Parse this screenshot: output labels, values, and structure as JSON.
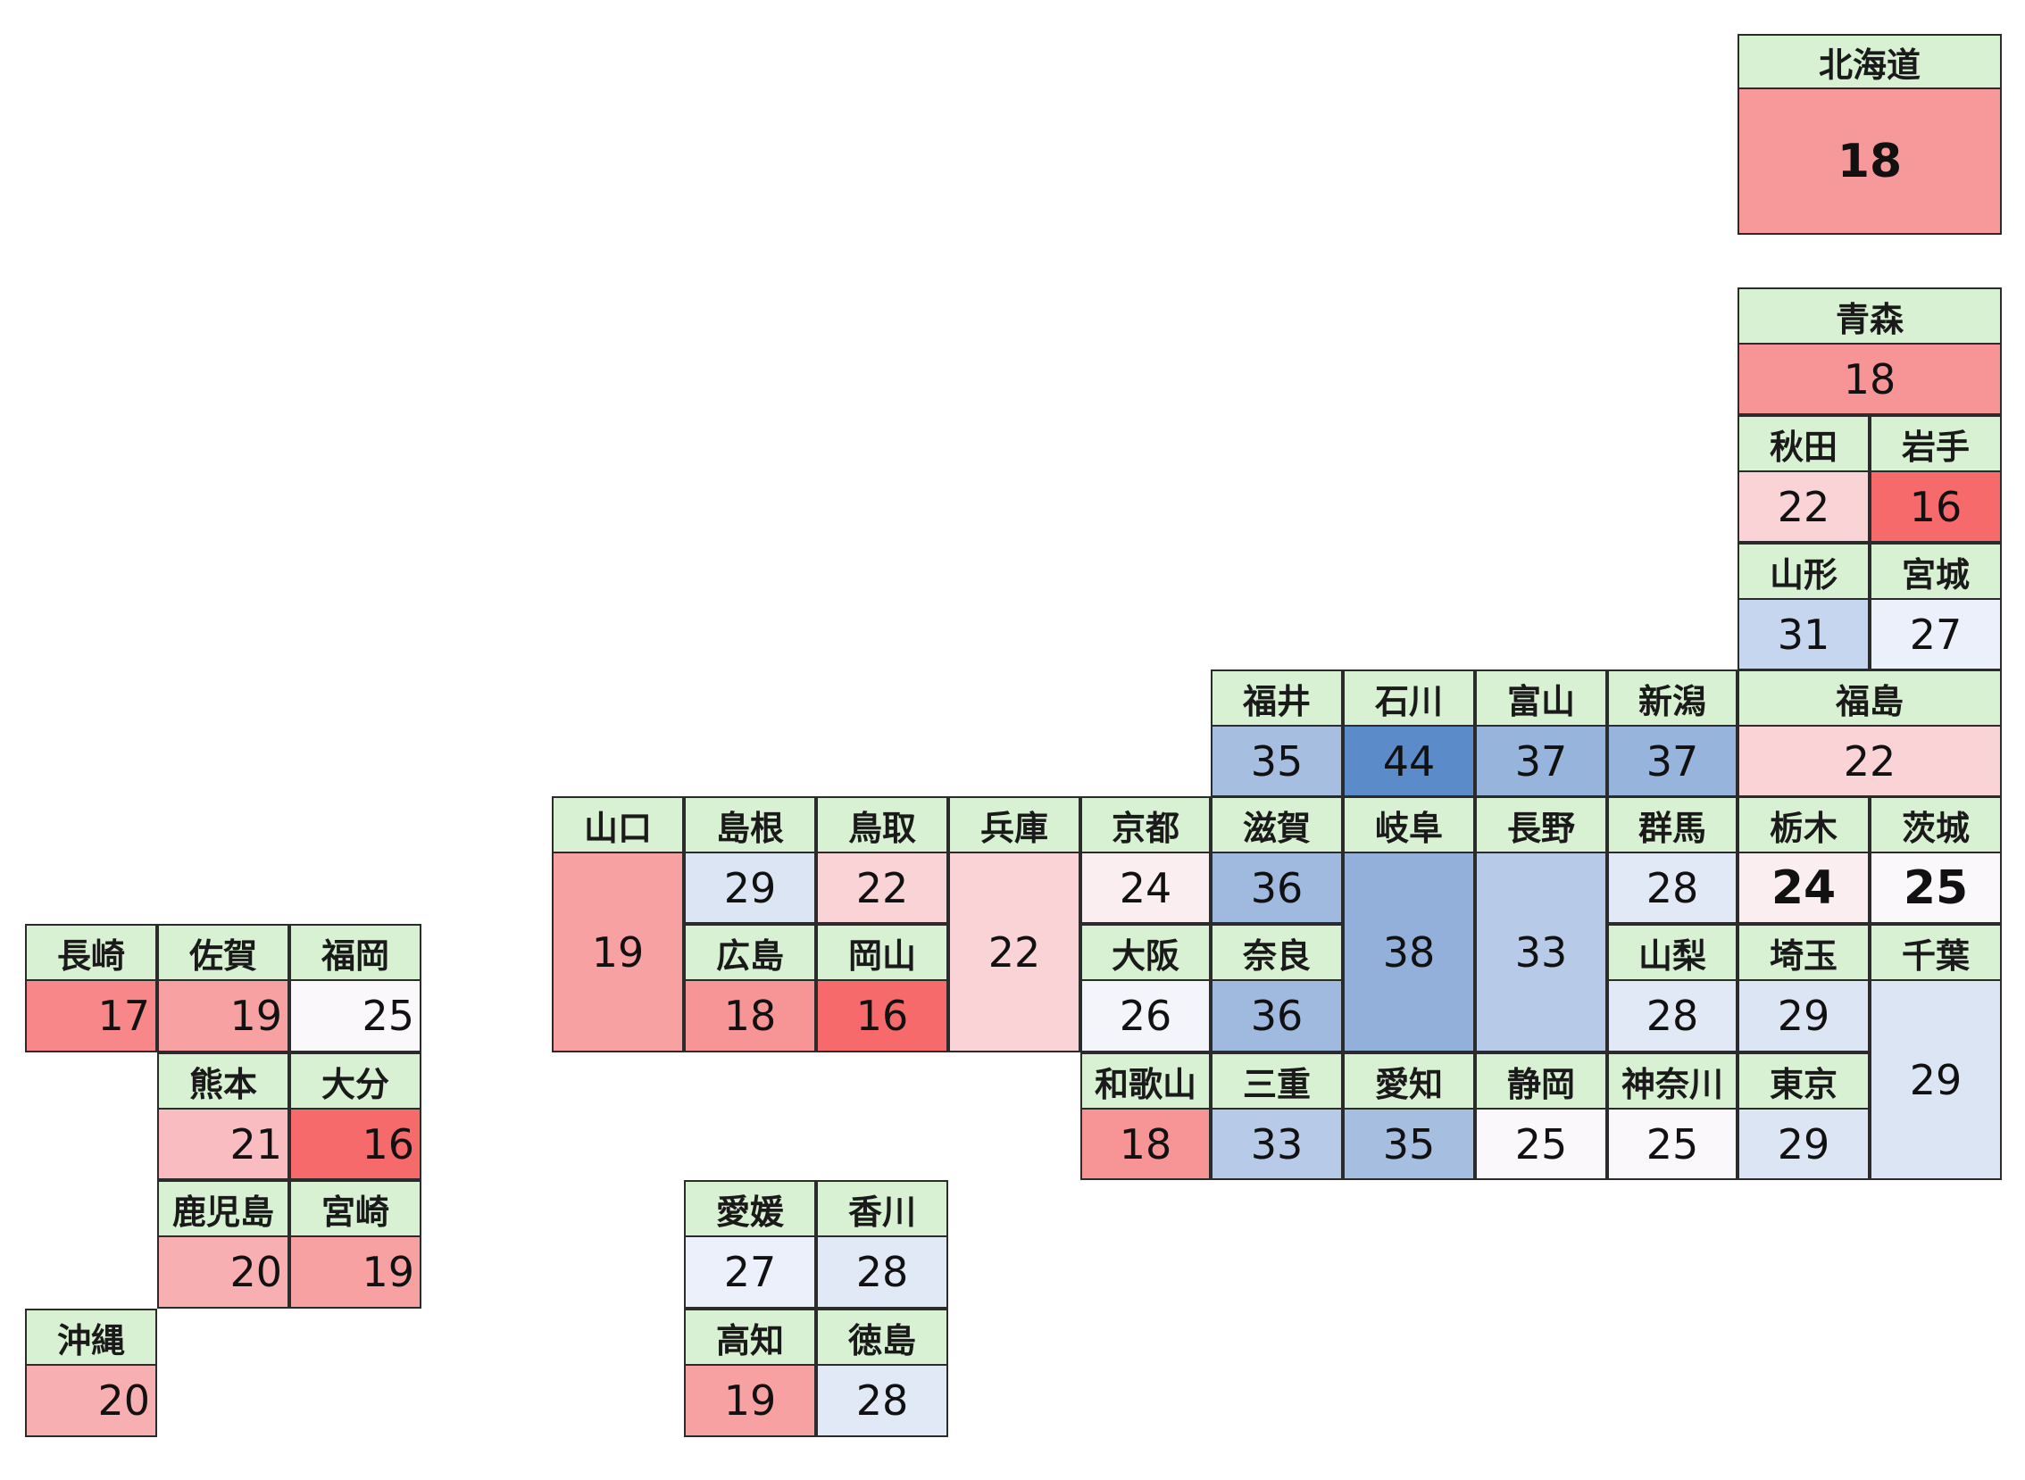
{
  "prefectures": [
    {
      "id": "hokkaido",
      "name": "北海道",
      "value": "18",
      "color": "#f7999a",
      "bold": true,
      "big": true
    },
    {
      "id": "aomori",
      "name": "青森",
      "value": "18",
      "color": "#f79596"
    },
    {
      "id": "akita",
      "name": "秋田",
      "value": "22",
      "color": "#fad3d6"
    },
    {
      "id": "iwate",
      "name": "岩手",
      "value": "16",
      "color": "#f76a6b"
    },
    {
      "id": "yamagata",
      "name": "山形",
      "value": "31",
      "color": "#c5d6ee"
    },
    {
      "id": "miyagi",
      "name": "宮城",
      "value": "27",
      "color": "#ecf0fa"
    },
    {
      "id": "fukui",
      "name": "福井",
      "value": "35",
      "color": "#a6bee0"
    },
    {
      "id": "ishikawa",
      "name": "石川",
      "value": "44",
      "color": "#5b8bc9"
    },
    {
      "id": "toyama",
      "name": "富山",
      "value": "37",
      "color": "#97b4dd"
    },
    {
      "id": "niigata",
      "name": "新潟",
      "value": "37",
      "color": "#97b4dd"
    },
    {
      "id": "fukushima",
      "name": "福島",
      "value": "22",
      "color": "#fad3d6"
    },
    {
      "id": "yamaguchi",
      "name": "山口",
      "value": "19",
      "color": "#f8a1a3"
    },
    {
      "id": "shimane",
      "name": "島根",
      "value": "29",
      "color": "#dbe5f4"
    },
    {
      "id": "tottori",
      "name": "鳥取",
      "value": "22",
      "color": "#fad3d6"
    },
    {
      "id": "hyogo",
      "name": "兵庫",
      "value": "22",
      "color": "#fad3d6"
    },
    {
      "id": "kyoto",
      "name": "京都",
      "value": "24",
      "color": "#fbeef1"
    },
    {
      "id": "shiga",
      "name": "滋賀",
      "value": "36",
      "color": "#a0badf"
    },
    {
      "id": "gifu",
      "name": "岐阜",
      "value": "38",
      "color": "#93b0da"
    },
    {
      "id": "nagano",
      "name": "長野",
      "value": "33",
      "color": "#b7cbe8"
    },
    {
      "id": "gunma",
      "name": "群馬",
      "value": "28",
      "color": "#e2e9f6"
    },
    {
      "id": "tochigi",
      "name": "栃木",
      "value": "24",
      "color": "#fbeef1",
      "bold": true,
      "big": true
    },
    {
      "id": "ibaraki",
      "name": "茨城",
      "value": "25",
      "color": "#fbf8fc",
      "bold": true,
      "big": true
    },
    {
      "id": "hiroshima",
      "name": "広島",
      "value": "18",
      "color": "#f79596"
    },
    {
      "id": "okayama",
      "name": "岡山",
      "value": "16",
      "color": "#f76a6b"
    },
    {
      "id": "osaka",
      "name": "大阪",
      "value": "26",
      "color": "#f3f5fb"
    },
    {
      "id": "nara",
      "name": "奈良",
      "value": "36",
      "color": "#a0badf"
    },
    {
      "id": "yamanashi",
      "name": "山梨",
      "value": "28",
      "color": "#e2e9f6"
    },
    {
      "id": "saitama",
      "name": "埼玉",
      "value": "29",
      "color": "#dbe5f4"
    },
    {
      "id": "chiba",
      "name": "千葉",
      "value": "29",
      "color": "#dbe5f4"
    },
    {
      "id": "wakayama",
      "name": "和歌山",
      "value": "18",
      "color": "#f79596"
    },
    {
      "id": "mie",
      "name": "三重",
      "value": "33",
      "color": "#b7cbe8"
    },
    {
      "id": "aichi",
      "name": "愛知",
      "value": "35",
      "color": "#a6bee0"
    },
    {
      "id": "shizuoka",
      "name": "静岡",
      "value": "25",
      "color": "#fbf8fc"
    },
    {
      "id": "kanagawa",
      "name": "神奈川",
      "value": "25",
      "color": "#fbf8fc"
    },
    {
      "id": "tokyo",
      "name": "東京",
      "value": "29",
      "color": "#dbe5f4"
    },
    {
      "id": "nagasaki",
      "name": "長崎",
      "value": "17",
      "color": "#f78788",
      "right": true
    },
    {
      "id": "saga",
      "name": "佐賀",
      "value": "19",
      "color": "#f8a1a3",
      "right": true
    },
    {
      "id": "fukuoka",
      "name": "福岡",
      "value": "25",
      "color": "#fbf8fc",
      "right": true
    },
    {
      "id": "kumamoto",
      "name": "熊本",
      "value": "21",
      "color": "#f9bcc0",
      "right": true
    },
    {
      "id": "oita",
      "name": "大分",
      "value": "16",
      "color": "#f76a6b",
      "right": true
    },
    {
      "id": "kagoshima",
      "name": "鹿児島",
      "value": "20",
      "color": "#f8afb1",
      "right": true
    },
    {
      "id": "miyazaki",
      "name": "宮崎",
      "value": "19",
      "color": "#f8a1a3",
      "right": true
    },
    {
      "id": "okinawa",
      "name": "沖縄",
      "value": "20",
      "color": "#f8afb1",
      "right": true
    },
    {
      "id": "ehime",
      "name": "愛媛",
      "value": "27",
      "color": "#ecf0fa"
    },
    {
      "id": "kagawa",
      "name": "香川",
      "value": "28",
      "color": "#e2e9f6"
    },
    {
      "id": "kochi",
      "name": "高知",
      "value": "19",
      "color": "#f8a1a3"
    },
    {
      "id": "tokushima",
      "name": "徳島",
      "value": "28",
      "color": "#e2e9f6"
    }
  ]
}
